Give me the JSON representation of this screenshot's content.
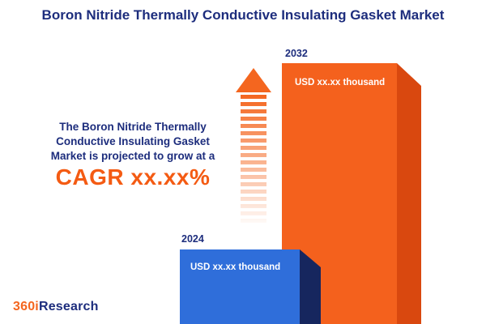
{
  "title": "Boron Nitride Thermally Conductive Insulating Gasket Market",
  "description": {
    "text": "The Boron Nitride Thermally\nConductive Insulating Gasket\nMarket is projected to grow at a",
    "cagr": "CAGR xx.xx%"
  },
  "logo": {
    "prefix": "360i",
    "suffix": "Research"
  },
  "colors": {
    "navy_text": "#1d2d7d",
    "orange_accent": "#f4661f",
    "cagr_orange": "#f45b13",
    "bar_2032_front": "#f4611d",
    "bar_2032_side": "#d9480f",
    "bar_2024_front": "#2f6eda",
    "bar_2024_side": "#16265e"
  },
  "chart_data": {
    "type": "bar",
    "categories": [
      "2024",
      "2032"
    ],
    "values": [
      null,
      null
    ],
    "value_labels": [
      "USD xx.xx thousand",
      "USD xx.xx thousand"
    ],
    "relative_heights": [
      0.29,
      1.0
    ],
    "title": "Boron Nitride Thermally Conductive Insulating Gasket Market",
    "annotation": "CAGR xx.xx%",
    "legend": false,
    "axes": "none",
    "style": "3d-extruded-bars",
    "bar_colors": [
      "#2f6eda",
      "#f4611d"
    ]
  }
}
